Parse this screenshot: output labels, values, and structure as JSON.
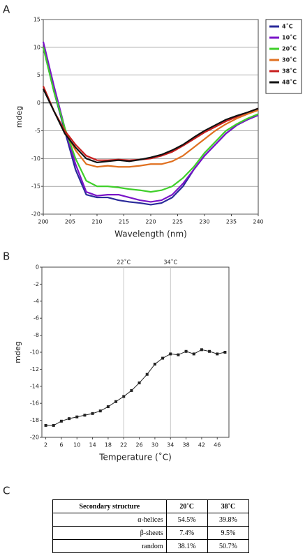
{
  "panel_labels": [
    "A",
    "B",
    "C"
  ],
  "chart_data": [
    {
      "type": "line",
      "xlabel": "Wavelength (nm)",
      "ylabel": "mdeg",
      "x": [
        200,
        202,
        204,
        206,
        208,
        210,
        212,
        214,
        216,
        218,
        220,
        222,
        224,
        226,
        228,
        230,
        232,
        234,
        236,
        238,
        240
      ],
      "xlim": [
        200,
        240
      ],
      "xticks": [
        200,
        205,
        210,
        215,
        220,
        225,
        230,
        235,
        240
      ],
      "ylim": [
        -20,
        15
      ],
      "yticks": [
        -20,
        -15,
        -10,
        -5,
        0,
        5,
        10,
        15
      ],
      "grid": true,
      "legend": "right",
      "markers": false,
      "series": [
        {
          "name": "4˚C",
          "color": "#2a2a9a",
          "values": [
            10,
            2,
            -5,
            -12,
            -16.5,
            -17,
            -17,
            -17.5,
            -17.8,
            -18,
            -18.3,
            -18,
            -17,
            -15,
            -12,
            -9.5,
            -7.5,
            -5.5,
            -4,
            -3,
            -2.2
          ]
        },
        {
          "name": "10˚C",
          "color": "#7a14c8",
          "values": [
            11,
            3,
            -4.5,
            -11,
            -16,
            -16.7,
            -16.5,
            -16.5,
            -17,
            -17.5,
            -17.8,
            -17.5,
            -16.5,
            -14.5,
            -12,
            -9.5,
            -7.5,
            -5.5,
            -4,
            -3,
            -2.2
          ]
        },
        {
          "name": "20˚C",
          "color": "#3fcf2a",
          "values": [
            10,
            2,
            -4.5,
            -10,
            -14,
            -15,
            -15,
            -15.2,
            -15.5,
            -15.7,
            -16,
            -15.7,
            -15,
            -13.5,
            -11.5,
            -9,
            -7,
            -5,
            -3.8,
            -2.8,
            -2
          ]
        },
        {
          "name": "30˚C",
          "color": "#e07020",
          "values": [
            3,
            -1.5,
            -5,
            -8.5,
            -11,
            -11.5,
            -11.3,
            -11.5,
            -11.5,
            -11.3,
            -11,
            -11,
            -10.5,
            -9.5,
            -8,
            -6.5,
            -5,
            -3.8,
            -2.8,
            -2,
            -1.3
          ]
        },
        {
          "name": "38˚C",
          "color": "#c81e1e",
          "values": [
            3,
            -1.5,
            -5,
            -7.5,
            -9.5,
            -10.3,
            -10.3,
            -10.2,
            -10.3,
            -10.2,
            -10,
            -9.5,
            -8.8,
            -7.7,
            -6.5,
            -5.3,
            -4.3,
            -3.3,
            -2.5,
            -1.7,
            -1
          ]
        },
        {
          "name": "48˚C",
          "color": "#111111",
          "values": [
            2.5,
            -1.5,
            -5.5,
            -8,
            -10,
            -10.7,
            -10.5,
            -10.3,
            -10.5,
            -10.2,
            -9.8,
            -9.3,
            -8.5,
            -7.5,
            -6.2,
            -5,
            -4,
            -3,
            -2.3,
            -1.7,
            -1
          ]
        }
      ]
    },
    {
      "type": "line",
      "xlabel": "Temperature (˚C)",
      "ylabel": "mdeg",
      "x": [
        2,
        4,
        6,
        8,
        10,
        12,
        14,
        16,
        18,
        20,
        22,
        24,
        26,
        28,
        30,
        32,
        34,
        36,
        38,
        40,
        42,
        44,
        46,
        48
      ],
      "xlim": [
        1,
        49
      ],
      "xticks": [
        2,
        6,
        10,
        14,
        18,
        22,
        26,
        30,
        34,
        38,
        42,
        46
      ],
      "ylim": [
        -20,
        0
      ],
      "yticks": [
        0,
        -2,
        -4,
        -6,
        -8,
        -10,
        -12,
        -14,
        -16,
        -18,
        -20
      ],
      "grid": false,
      "markers": true,
      "annotations": [
        {
          "x": 22,
          "label": "22˚C"
        },
        {
          "x": 34,
          "label": "34˚C"
        }
      ],
      "series": [
        {
          "color": "#222222",
          "values": [
            -18.6,
            -18.6,
            -18.1,
            -17.8,
            -17.6,
            -17.4,
            -17.2,
            -16.9,
            -16.4,
            -15.8,
            -15.2,
            -14.5,
            -13.6,
            -12.6,
            -11.4,
            -10.7,
            -10.2,
            -10.3,
            -9.9,
            -10.2,
            -9.7,
            -9.9,
            -10.2,
            -10.0
          ]
        }
      ]
    }
  ],
  "table": {
    "header": [
      "Secondary structure",
      "20˚C",
      "38˚C"
    ],
    "rows": [
      [
        "α-helices",
        "54.5%",
        "39.8%"
      ],
      [
        "β-sheets",
        "7.4%",
        "9.5%"
      ],
      [
        "random",
        "38.1%",
        "50.7%"
      ]
    ]
  }
}
